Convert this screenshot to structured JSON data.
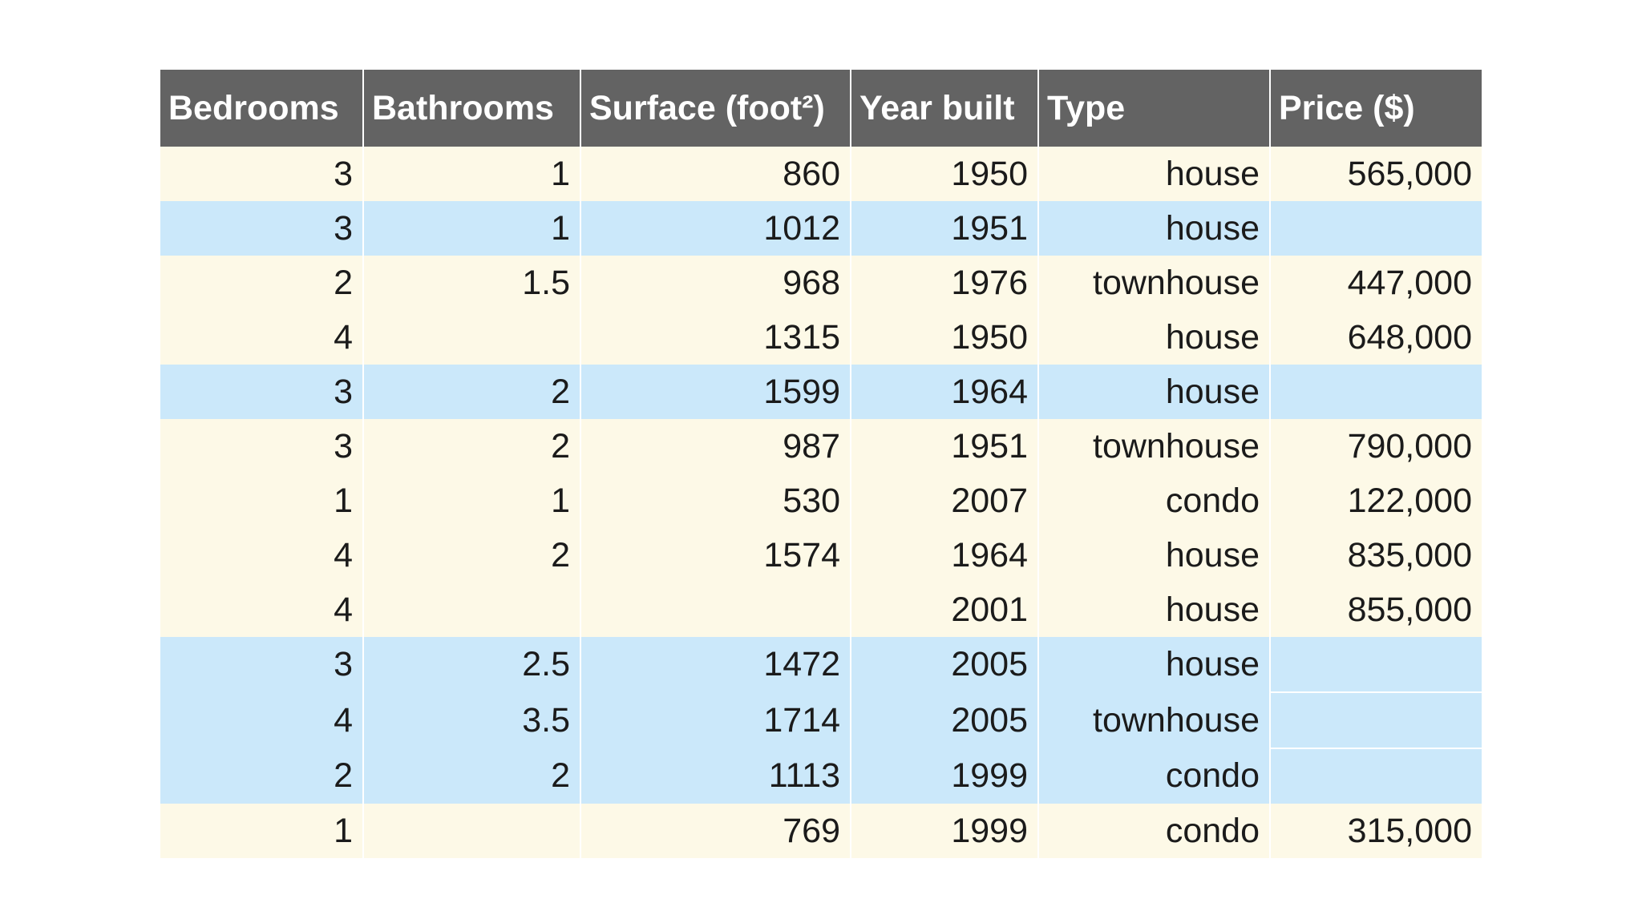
{
  "colors": {
    "header_bg": "#636363",
    "header_text": "#ffffff",
    "row_cream": "#fdf9e7",
    "row_blue": "#cbe8fa",
    "missing_orange": "#fbd5a1",
    "cell_text": "#1b1b1b",
    "page_bg": "#ffffff"
  },
  "chart_data": {
    "type": "table",
    "title": "",
    "columns": [
      "Bedrooms",
      "Bathrooms",
      "Surface (foot²)",
      "Year built",
      "Type",
      "Price ($)"
    ],
    "column_keys": [
      "bedrooms",
      "bathrooms",
      "surface",
      "year_built",
      "type",
      "price"
    ],
    "rows": [
      {
        "bedrooms": "3",
        "bathrooms": "1",
        "surface": "860",
        "year_built": "1950",
        "type": "house",
        "price": "565,000",
        "highlighted": false,
        "price_missing": false
      },
      {
        "bedrooms": "3",
        "bathrooms": "1",
        "surface": "1012",
        "year_built": "1951",
        "type": "house",
        "price": "",
        "highlighted": true,
        "price_missing": true
      },
      {
        "bedrooms": "2",
        "bathrooms": "1.5",
        "surface": "968",
        "year_built": "1976",
        "type": "townhouse",
        "price": "447,000",
        "highlighted": false,
        "price_missing": false
      },
      {
        "bedrooms": "4",
        "bathrooms": "",
        "surface": "1315",
        "year_built": "1950",
        "type": "house",
        "price": "648,000",
        "highlighted": false,
        "price_missing": false
      },
      {
        "bedrooms": "3",
        "bathrooms": "2",
        "surface": "1599",
        "year_built": "1964",
        "type": "house",
        "price": "",
        "highlighted": true,
        "price_missing": true
      },
      {
        "bedrooms": "3",
        "bathrooms": "2",
        "surface": "987",
        "year_built": "1951",
        "type": "townhouse",
        "price": "790,000",
        "highlighted": false,
        "price_missing": false
      },
      {
        "bedrooms": "1",
        "bathrooms": "1",
        "surface": "530",
        "year_built": "2007",
        "type": "condo",
        "price": "122,000",
        "highlighted": false,
        "price_missing": false
      },
      {
        "bedrooms": "4",
        "bathrooms": "2",
        "surface": "1574",
        "year_built": "1964",
        "type": "house",
        "price": "835,000",
        "highlighted": false,
        "price_missing": false
      },
      {
        "bedrooms": "4",
        "bathrooms": "",
        "surface": "",
        "year_built": "2001",
        "type": "house",
        "price": "855,000",
        "highlighted": false,
        "price_missing": false
      },
      {
        "bedrooms": "3",
        "bathrooms": "2.5",
        "surface": "1472",
        "year_built": "2005",
        "type": "house",
        "price": "",
        "highlighted": true,
        "price_missing": true
      },
      {
        "bedrooms": "4",
        "bathrooms": "3.5",
        "surface": "1714",
        "year_built": "2005",
        "type": "townhouse",
        "price": "",
        "highlighted": true,
        "price_missing": true
      },
      {
        "bedrooms": "2",
        "bathrooms": "2",
        "surface": "1113",
        "year_built": "1999",
        "type": "condo",
        "price": "",
        "highlighted": true,
        "price_missing": true
      },
      {
        "bedrooms": "1",
        "bathrooms": "",
        "surface": "769",
        "year_built": "1999",
        "type": "condo",
        "price": "315,000",
        "highlighted": false,
        "price_missing": false
      }
    ]
  }
}
